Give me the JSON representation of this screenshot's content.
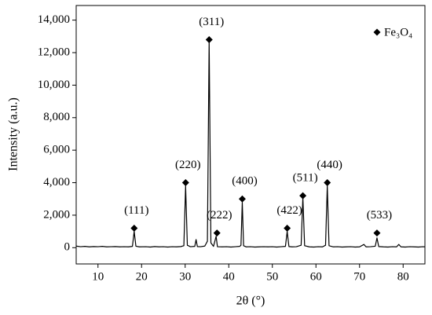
{
  "chart_data": {
    "type": "line",
    "x_label": "2θ (°)",
    "y_label": "Intensity (a.u.)",
    "xlim": [
      5,
      85
    ],
    "ylim": [
      -1000,
      14900
    ],
    "xticks": [
      10,
      20,
      30,
      40,
      50,
      60,
      70,
      80
    ],
    "yticks": [
      0,
      {
        "value": 2000,
        "label": "2,000"
      },
      {
        "value": 4000,
        "label": "4,000"
      },
      {
        "value": 6000,
        "label": "6,000"
      },
      {
        "value": 8000,
        "label": "8,000"
      },
      {
        "value": 10000,
        "label": "10,000"
      },
      {
        "value": 12000,
        "label": "12,000"
      },
      {
        "value": 14000,
        "label": "14,000"
      }
    ],
    "legend": "top-right",
    "series": [
      {
        "name": "Fe₃O₄",
        "color": "#000000",
        "x": [
          5,
          6,
          7,
          8,
          9,
          10,
          11,
          12,
          13,
          14,
          15,
          16,
          17,
          17.9,
          18.3,
          18.7,
          19.5,
          21,
          22,
          23,
          24,
          25,
          26,
          27,
          28,
          29,
          29.7,
          30.1,
          30.5,
          31.2,
          32.2,
          32.5,
          32.8,
          33.5,
          34.5,
          35.1,
          35.5,
          35.9,
          36.5,
          37.1,
          37.4,
          38.5,
          39.5,
          40.5,
          41.5,
          42.5,
          42.8,
          43.1,
          43.4,
          44,
          45,
          46,
          47,
          48,
          49,
          50,
          51,
          52,
          53,
          53.4,
          53.8,
          54.5,
          55.5,
          56.6,
          57,
          57.4,
          58.5,
          59.5,
          60.5,
          61.5,
          62.2,
          62.6,
          63,
          64,
          65,
          66,
          67,
          68,
          69,
          70,
          71,
          71.5,
          72.5,
          73.6,
          74,
          74.4,
          75.5,
          76.5,
          77.5,
          78.5,
          79,
          79.5,
          80.5,
          81.5,
          82.5,
          83.5,
          84.5,
          85
        ],
        "values": [
          100,
          60,
          80,
          50,
          70,
          60,
          80,
          50,
          60,
          70,
          50,
          60,
          50,
          80,
          1000,
          90,
          50,
          60,
          40,
          70,
          50,
          60,
          40,
          60,
          50,
          70,
          120,
          3800,
          150,
          60,
          80,
          500,
          70,
          60,
          100,
          400,
          12700,
          300,
          80,
          700,
          60,
          50,
          60,
          40,
          60,
          80,
          150,
          2800,
          120,
          50,
          60,
          40,
          50,
          60,
          50,
          60,
          40,
          60,
          80,
          1000,
          70,
          50,
          60,
          150,
          3100,
          120,
          50,
          40,
          60,
          50,
          150,
          3800,
          120,
          50,
          60,
          40,
          50,
          60,
          40,
          50,
          200,
          50,
          60,
          90,
          600,
          70,
          50,
          40,
          60,
          50,
          200,
          50,
          40,
          60,
          50,
          40,
          60,
          50
        ]
      }
    ],
    "annotations": [
      {
        "x": 18.3,
        "y": 1200,
        "text": "(111)"
      },
      {
        "x": 30.1,
        "y": 4000,
        "text": "(220)"
      },
      {
        "x": 35.5,
        "y": 12800,
        "text": "(311)"
      },
      {
        "x": 37.3,
        "y": 900,
        "text": "(222)"
      },
      {
        "x": 43.1,
        "y": 3000,
        "text": "(400)"
      },
      {
        "x": 53.4,
        "y": 1200,
        "text": "(422)"
      },
      {
        "x": 57.0,
        "y": 3200,
        "text": "(511)"
      },
      {
        "x": 62.6,
        "y": 4000,
        "text": "(440)"
      },
      {
        "x": 74.0,
        "y": 900,
        "text": "(533)"
      }
    ]
  }
}
